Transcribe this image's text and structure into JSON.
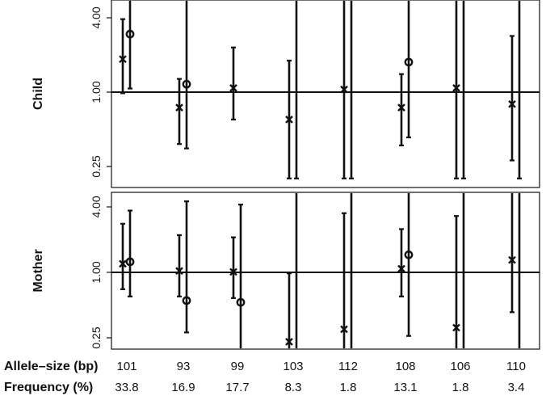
{
  "chart_data": {
    "type": "scatter",
    "y_scale": "log",
    "y_ticks": [
      {
        "value": 0.25,
        "label": "0.25"
      },
      {
        "value": 1.0,
        "label": "1.00"
      },
      {
        "value": 4.0,
        "label": "4.00"
      }
    ],
    "reference_line": 1.0,
    "row_labels": {
      "allele": "Allele–size (bp)",
      "frequency": "Frequency (%)"
    },
    "alleles": [
      {
        "size": "101",
        "frequency": "33.8"
      },
      {
        "size": "93",
        "frequency": "16.9"
      },
      {
        "size": "99",
        "frequency": "17.7"
      },
      {
        "size": "103",
        "frequency": "8.3"
      },
      {
        "size": "112",
        "frequency": "1.8"
      },
      {
        "size": "108",
        "frequency": "13.1"
      },
      {
        "size": "106",
        "frequency": "1.8"
      },
      {
        "size": "110",
        "frequency": "3.4"
      }
    ],
    "panels": [
      {
        "label": "Child",
        "estimates": [
          {
            "x_est": 1.85,
            "x_low": 0.98,
            "x_high": 3.9,
            "o_est": 2.95,
            "o_low": 1.07,
            "o_high": 5.5
          },
          {
            "x_est": 0.75,
            "x_low": 0.38,
            "x_high": 1.28,
            "o_est": 1.16,
            "o_low": 0.35,
            "o_high": 5.5
          },
          {
            "x_est": 1.08,
            "x_low": 0.6,
            "x_high": 2.3
          },
          {
            "x_est": 0.6,
            "x_low": 0.2,
            "x_high": 1.8,
            "o_high": 5.5,
            "o_low": 0.2
          },
          {
            "x_est": 1.05,
            "x_low": 0.2,
            "x_high": 5.5,
            "o_high": 5.5,
            "o_low": 0.2
          },
          {
            "x_est": 0.75,
            "x_low": 0.37,
            "x_high": 1.4,
            "o_est": 1.75,
            "o_low": 0.43,
            "o_high": 5.5
          },
          {
            "x_est": 1.08,
            "x_low": 0.2,
            "x_high": 5.5,
            "o_high": 5.5,
            "o_low": 0.2
          },
          {
            "x_est": 0.8,
            "x_low": 0.28,
            "x_high": 2.85,
            "o_high": 5.5,
            "o_low": 0.2
          }
        ]
      },
      {
        "label": "Mother",
        "estimates": [
          {
            "x_est": 1.2,
            "x_low": 0.7,
            "x_high": 2.8,
            "o_est": 1.25,
            "o_low": 0.6,
            "o_high": 3.7
          },
          {
            "x_est": 1.03,
            "x_low": 0.6,
            "x_high": 2.2,
            "o_est": 0.55,
            "o_low": 0.28,
            "o_high": 4.5
          },
          {
            "x_est": 1.01,
            "x_low": 0.58,
            "x_high": 2.1,
            "o_est": 0.53,
            "o_low": 0.2,
            "o_high": 4.2
          },
          {
            "x_est": 0.23,
            "x_low": 0.2,
            "x_high": 0.98,
            "o_high": 5.5,
            "o_low": 0.2
          },
          {
            "x_est": 0.3,
            "x_low": 0.2,
            "x_high": 3.5,
            "o_high": 5.5,
            "o_low": 0.2
          },
          {
            "x_est": 1.08,
            "x_low": 0.6,
            "x_high": 2.5,
            "o_est": 1.45,
            "o_low": 0.26,
            "o_high": 5.5
          },
          {
            "x_est": 0.31,
            "x_low": 0.2,
            "x_high": 3.3,
            "o_high": 5.5,
            "o_low": 0.2
          },
          {
            "x_est": 1.3,
            "x_low": 0.43,
            "x_high": 5.5,
            "o_high": 5.5,
            "o_low": 0.2
          }
        ]
      }
    ]
  }
}
